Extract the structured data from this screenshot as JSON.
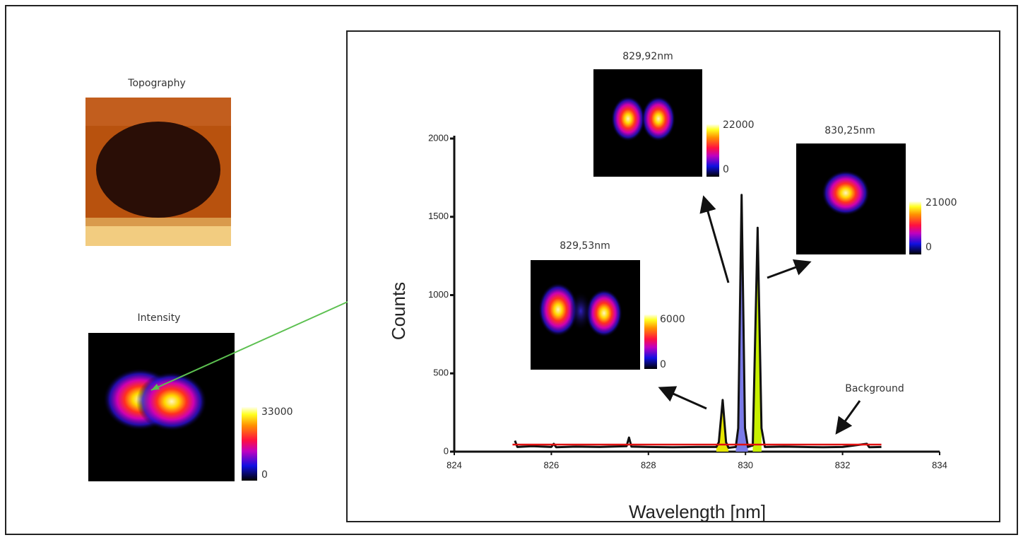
{
  "side_panels": {
    "topography": {
      "title": "Topography"
    },
    "intensity": {
      "title": "Intensity",
      "colorbar": {
        "max": 33000,
        "min": 0
      }
    }
  },
  "chart_data": {
    "type": "line",
    "x_label": "Wavelength  [nm]",
    "y_label": "Counts",
    "xlim": [
      824,
      834
    ],
    "xticks": [
      824,
      826,
      828,
      830,
      832,
      834
    ],
    "ylim": [
      0,
      2000
    ],
    "yticks": [
      0,
      500,
      1000,
      1500,
      2000
    ],
    "series": [
      {
        "color": "#111111",
        "x": [
          825.25,
          825.3,
          825.6,
          826.0,
          826.05,
          826.1,
          826.5,
          827.0,
          827.55,
          827.6,
          827.65,
          828.0,
          828.5,
          829.0,
          829.4,
          829.45,
          829.53,
          829.6,
          829.65,
          829.8,
          829.85,
          829.92,
          829.99,
          830.05,
          830.15,
          830.25,
          830.33,
          830.4,
          830.8,
          831.2,
          831.6,
          832.0,
          832.5,
          832.55,
          832.8
        ],
        "values": [
          70,
          30,
          35,
          30,
          50,
          28,
          32,
          30,
          35,
          90,
          32,
          30,
          28,
          30,
          30,
          60,
          330,
          60,
          25,
          30,
          150,
          1640,
          150,
          30,
          40,
          1430,
          150,
          30,
          32,
          30,
          28,
          30,
          50,
          28,
          30
        ]
      },
      {
        "color": "#e01010",
        "x": [
          825.2,
          832.8
        ],
        "values": [
          45,
          45
        ]
      }
    ],
    "annotation": "Background",
    "insets": [
      {
        "label": "829,53nm",
        "wavelength": 829.53,
        "fill": "#e6e600",
        "colorbar": {
          "max": 6000,
          "min": 0
        }
      },
      {
        "label": "829,92nm",
        "wavelength": 829.92,
        "fill": "#7a7ae8",
        "colorbar": {
          "max": 22000,
          "min": 0
        }
      },
      {
        "label": "830,25nm",
        "wavelength": 830.25,
        "fill": "#c8f000",
        "colorbar": {
          "max": 21000,
          "min": 0
        }
      }
    ]
  }
}
